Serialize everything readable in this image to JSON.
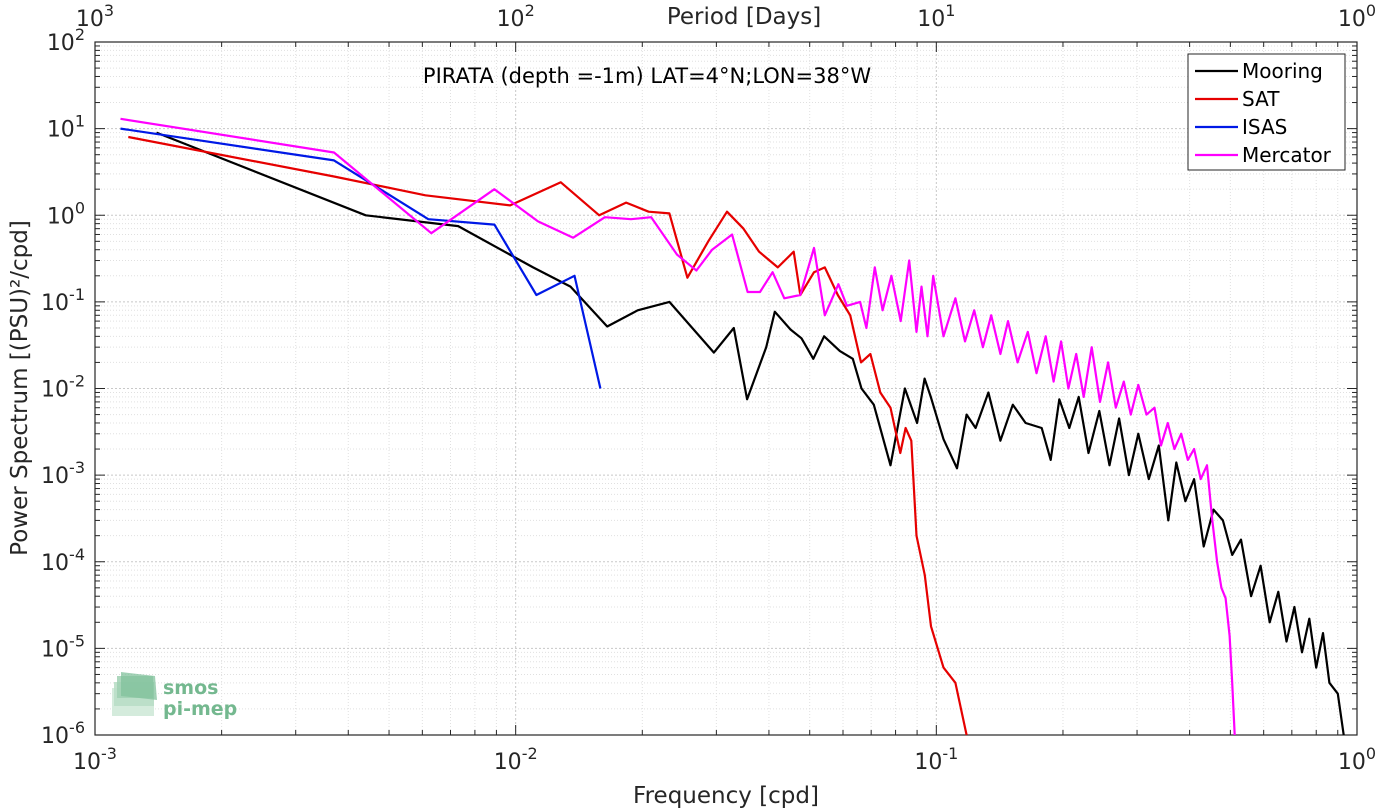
{
  "chart_data": {
    "type": "line",
    "title": "PIRATA (depth =-1m) LAT=4°N;LON=38°W",
    "xlabel": "Frequency [cpd]",
    "ylabel": "Power Spectrum [(PSU)²/cpd]",
    "top_axis_label": "Period [Days]",
    "x_scale": "log",
    "y_scale": "log",
    "xlim": [
      0.001,
      1
    ],
    "ylim": [
      1e-06,
      100
    ],
    "grid": true,
    "legend_position": "top-right",
    "x_ticks": [
      {
        "value": 0.001,
        "base": "10",
        "exp": "-3"
      },
      {
        "value": 0.01,
        "base": "10",
        "exp": "-2"
      },
      {
        "value": 0.1,
        "base": "10",
        "exp": "-1"
      },
      {
        "value": 1,
        "base": "10",
        "exp": "0"
      }
    ],
    "top_ticks": [
      {
        "value": 0.001,
        "base": "10",
        "exp": "3"
      },
      {
        "value": 0.01,
        "base": "10",
        "exp": "2"
      },
      {
        "value": 0.1,
        "base": "10",
        "exp": "1"
      },
      {
        "value": 1,
        "base": "10",
        "exp": "0"
      }
    ],
    "y_ticks": [
      {
        "value": 100,
        "base": "10",
        "exp": "2"
      },
      {
        "value": 10,
        "base": "10",
        "exp": "1"
      },
      {
        "value": 1,
        "base": "10",
        "exp": "0"
      },
      {
        "value": 0.1,
        "base": "10",
        "exp": "-1"
      },
      {
        "value": 0.01,
        "base": "10",
        "exp": "-2"
      },
      {
        "value": 0.001,
        "base": "10",
        "exp": "-3"
      },
      {
        "value": 0.0001,
        "base": "10",
        "exp": "-4"
      },
      {
        "value": 1e-05,
        "base": "10",
        "exp": "-5"
      },
      {
        "value": 1e-06,
        "base": "10",
        "exp": "-6"
      }
    ],
    "series": [
      {
        "name": "Mooring",
        "color": "#000000",
        "points": [
          [
            0.0014,
            9.0
          ],
          [
            0.0044,
            1.0
          ],
          [
            0.0073,
            0.75
          ],
          [
            0.011,
            0.25
          ],
          [
            0.0135,
            0.15
          ],
          [
            0.0165,
            0.052
          ],
          [
            0.0195,
            0.08
          ],
          [
            0.0232,
            0.1
          ],
          [
            0.0263,
            0.05
          ],
          [
            0.0296,
            0.026
          ],
          [
            0.033,
            0.05
          ],
          [
            0.0355,
            0.0075
          ],
          [
            0.0394,
            0.03
          ],
          [
            0.0413,
            0.077
          ],
          [
            0.045,
            0.048
          ],
          [
            0.0478,
            0.038
          ],
          [
            0.051,
            0.022
          ],
          [
            0.0541,
            0.04
          ],
          [
            0.059,
            0.027
          ],
          [
            0.0633,
            0.022
          ],
          [
            0.0664,
            0.01
          ],
          [
            0.071,
            0.0065
          ],
          [
            0.0778,
            0.0013
          ],
          [
            0.0842,
            0.01
          ],
          [
            0.09,
            0.004
          ],
          [
            0.0938,
            0.013
          ],
          [
            0.097,
            0.008
          ],
          [
            0.104,
            0.0026
          ],
          [
            0.112,
            0.0012
          ],
          [
            0.118,
            0.005
          ],
          [
            0.124,
            0.0035
          ],
          [
            0.133,
            0.009
          ],
          [
            0.142,
            0.0025
          ],
          [
            0.152,
            0.0065
          ],
          [
            0.163,
            0.004
          ],
          [
            0.178,
            0.0035
          ],
          [
            0.187,
            0.0015
          ],
          [
            0.196,
            0.0075
          ],
          [
            0.207,
            0.0035
          ],
          [
            0.218,
            0.008
          ],
          [
            0.23,
            0.0018
          ],
          [
            0.244,
            0.0055
          ],
          [
            0.258,
            0.0013
          ],
          [
            0.272,
            0.0045
          ],
          [
            0.287,
            0.001
          ],
          [
            0.302,
            0.003
          ],
          [
            0.32,
            0.0009
          ],
          [
            0.338,
            0.0022
          ],
          [
            0.356,
            0.0003
          ],
          [
            0.372,
            0.0014
          ],
          [
            0.391,
            0.0005
          ],
          [
            0.41,
            0.0009
          ],
          [
            0.432,
            0.00015
          ],
          [
            0.456,
            0.0004
          ],
          [
            0.48,
            0.0003
          ],
          [
            0.505,
            0.00012
          ],
          [
            0.53,
            0.00018
          ],
          [
            0.56,
            4e-05
          ],
          [
            0.59,
            9e-05
          ],
          [
            0.62,
            2e-05
          ],
          [
            0.65,
            4.5e-05
          ],
          [
            0.68,
            1.2e-05
          ],
          [
            0.71,
            3e-05
          ],
          [
            0.74,
            9e-06
          ],
          [
            0.77,
            2.2e-05
          ],
          [
            0.8,
            6e-06
          ],
          [
            0.83,
            1.5e-05
          ],
          [
            0.86,
            4e-06
          ],
          [
            0.9,
            3e-06
          ],
          [
            0.93,
            1e-06
          ]
        ]
      },
      {
        "name": "SAT",
        "color": "#e60000",
        "points": [
          [
            0.0012,
            8.0
          ],
          [
            0.0037,
            2.8
          ],
          [
            0.0061,
            1.7
          ],
          [
            0.0097,
            1.3
          ],
          [
            0.0128,
            2.4
          ],
          [
            0.0158,
            1.0
          ],
          [
            0.0183,
            1.4
          ],
          [
            0.0207,
            1.1
          ],
          [
            0.0232,
            1.05
          ],
          [
            0.0256,
            0.19
          ],
          [
            0.0287,
            0.5
          ],
          [
            0.0318,
            1.1
          ],
          [
            0.0348,
            0.7
          ],
          [
            0.0379,
            0.38
          ],
          [
            0.042,
            0.25
          ],
          [
            0.0458,
            0.38
          ],
          [
            0.0475,
            0.12
          ],
          [
            0.0512,
            0.22
          ],
          [
            0.0543,
            0.25
          ],
          [
            0.0583,
            0.12
          ],
          [
            0.0624,
            0.07
          ],
          [
            0.0662,
            0.02
          ],
          [
            0.0697,
            0.025
          ],
          [
            0.0736,
            0.009
          ],
          [
            0.0778,
            0.006
          ],
          [
            0.0821,
            0.0018
          ],
          [
            0.0845,
            0.0035
          ],
          [
            0.0872,
            0.0025
          ],
          [
            0.0897,
            0.0002
          ],
          [
            0.0939,
            7e-05
          ],
          [
            0.0971,
            1.8e-05
          ],
          [
            0.104,
            6e-06
          ],
          [
            0.111,
            4e-06
          ],
          [
            0.118,
            1e-06
          ]
        ]
      },
      {
        "name": "ISAS",
        "color": "#0019e6",
        "points": [
          [
            0.00115,
            10.0
          ],
          [
            0.0037,
            4.3
          ],
          [
            0.0062,
            0.9
          ],
          [
            0.0089,
            0.78
          ],
          [
            0.0112,
            0.12
          ],
          [
            0.0138,
            0.2
          ],
          [
            0.0159,
            0.01
          ]
        ]
      },
      {
        "name": "Mercator",
        "color": "#ff00ff",
        "points": [
          [
            0.00115,
            13.0
          ],
          [
            0.0037,
            5.3
          ],
          [
            0.0063,
            0.62
          ],
          [
            0.0089,
            2.0
          ],
          [
            0.0113,
            0.85
          ],
          [
            0.0137,
            0.55
          ],
          [
            0.0163,
            0.95
          ],
          [
            0.0188,
            0.9
          ],
          [
            0.021,
            0.95
          ],
          [
            0.0242,
            0.35
          ],
          [
            0.0269,
            0.23
          ],
          [
            0.0293,
            0.4
          ],
          [
            0.0327,
            0.6
          ],
          [
            0.0356,
            0.13
          ],
          [
            0.0381,
            0.13
          ],
          [
            0.0408,
            0.22
          ],
          [
            0.0435,
            0.11
          ],
          [
            0.0475,
            0.12
          ],
          [
            0.0512,
            0.42
          ],
          [
            0.0543,
            0.07
          ],
          [
            0.0585,
            0.16
          ],
          [
            0.0613,
            0.09
          ],
          [
            0.0659,
            0.1
          ],
          [
            0.0682,
            0.05
          ],
          [
            0.0714,
            0.25
          ],
          [
            0.0745,
            0.08
          ],
          [
            0.0782,
            0.2
          ],
          [
            0.0823,
            0.06
          ],
          [
            0.0862,
            0.3
          ],
          [
            0.0897,
            0.045
          ],
          [
            0.0922,
            0.15
          ],
          [
            0.0953,
            0.04
          ],
          [
            0.0983,
            0.2
          ],
          [
            0.104,
            0.04
          ],
          [
            0.111,
            0.11
          ],
          [
            0.117,
            0.035
          ],
          [
            0.123,
            0.08
          ],
          [
            0.129,
            0.03
          ],
          [
            0.135,
            0.07
          ],
          [
            0.142,
            0.025
          ],
          [
            0.148,
            0.06
          ],
          [
            0.156,
            0.02
          ],
          [
            0.165,
            0.045
          ],
          [
            0.173,
            0.015
          ],
          [
            0.182,
            0.04
          ],
          [
            0.19,
            0.012
          ],
          [
            0.198,
            0.035
          ],
          [
            0.206,
            0.01
          ],
          [
            0.215,
            0.025
          ],
          [
            0.224,
            0.008
          ],
          [
            0.234,
            0.03
          ],
          [
            0.245,
            0.007
          ],
          [
            0.256,
            0.02
          ],
          [
            0.267,
            0.006
          ],
          [
            0.279,
            0.012
          ],
          [
            0.29,
            0.005
          ],
          [
            0.302,
            0.011
          ],
          [
            0.316,
            0.005
          ],
          [
            0.33,
            0.006
          ],
          [
            0.342,
            0.0022
          ],
          [
            0.355,
            0.004
          ],
          [
            0.368,
            0.002
          ],
          [
            0.382,
            0.003
          ],
          [
            0.396,
            0.0015
          ],
          [
            0.41,
            0.002
          ],
          [
            0.425,
            0.0009
          ],
          [
            0.44,
            0.0013
          ],
          [
            0.453,
            0.0003
          ],
          [
            0.465,
            0.0001
          ],
          [
            0.476,
            5e-05
          ],
          [
            0.487,
            3.8e-05
          ],
          [
            0.498,
            1.4e-05
          ],
          [
            0.505,
            4e-06
          ],
          [
            0.512,
            1e-06
          ]
        ]
      }
    ]
  },
  "logo": {
    "line1": "smos",
    "line2": "pi-mep"
  }
}
